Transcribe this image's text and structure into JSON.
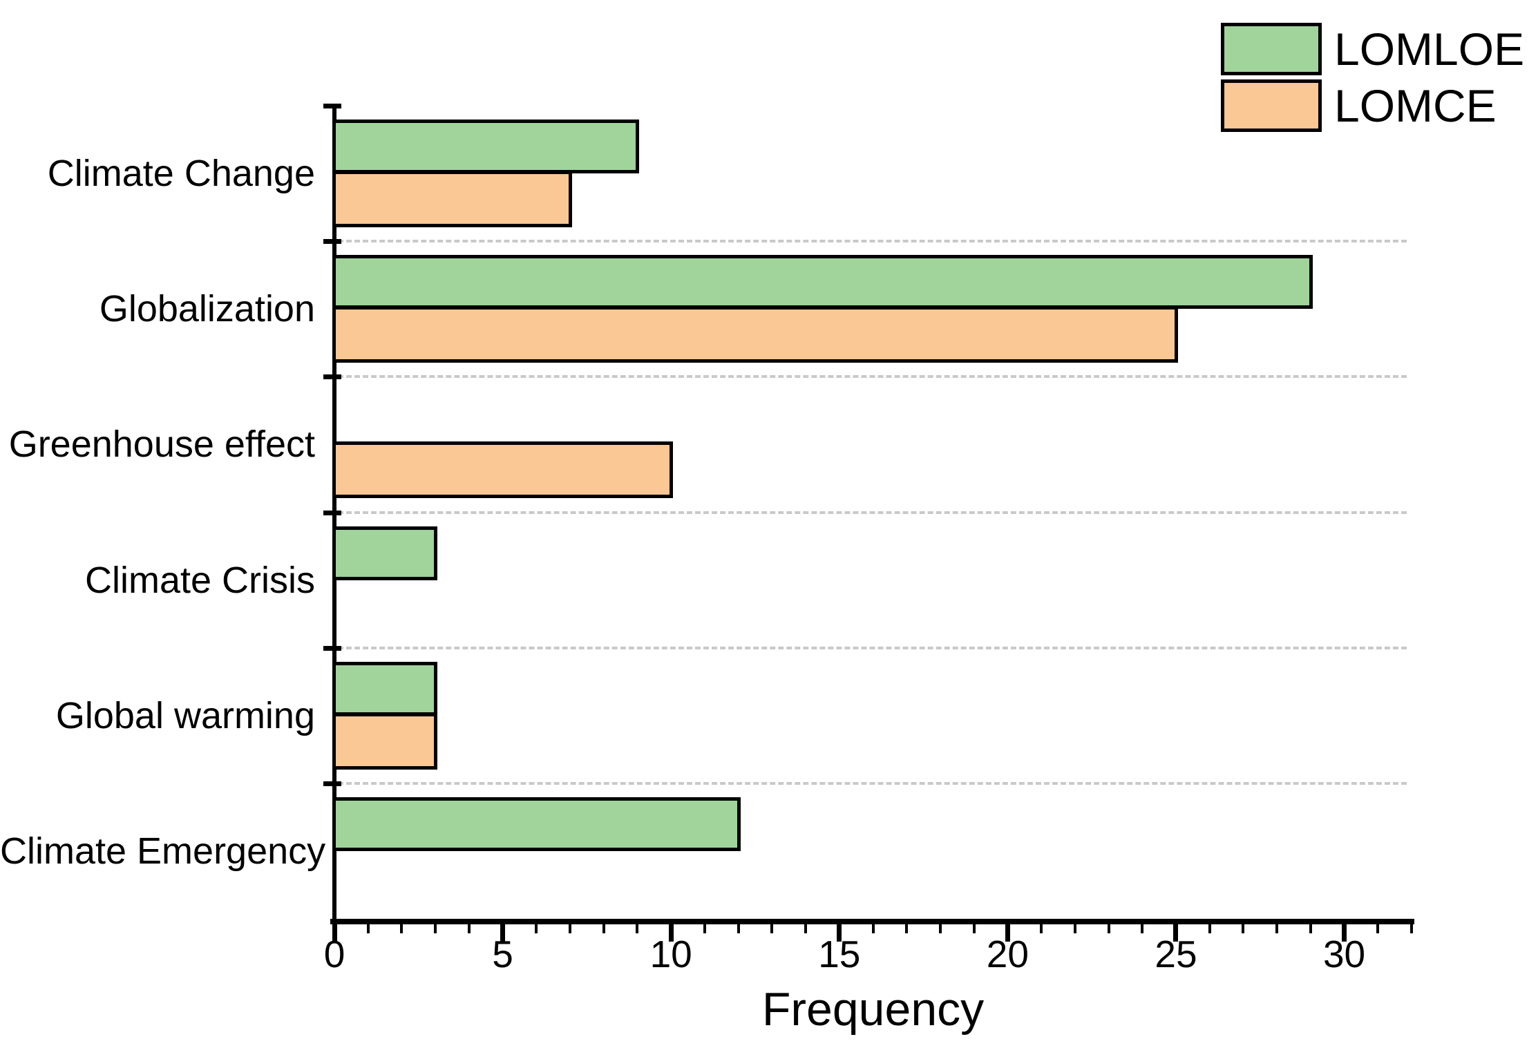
{
  "chart_data": {
    "type": "bar",
    "orientation": "horizontal",
    "title": "",
    "xlabel": "Frequency",
    "categories": [
      "Climate Change",
      "Globalization",
      "Greenhouse effect",
      "Climate Crisis",
      "Global warming",
      "Climate Emergency"
    ],
    "series": [
      {
        "name": "LOMLOE",
        "color": "#a0d49b",
        "values": [
          9,
          29,
          0,
          3,
          3,
          12
        ]
      },
      {
        "name": "LOMCE",
        "color": "#fac894",
        "values": [
          7,
          25,
          10,
          0,
          3,
          0
        ]
      }
    ],
    "xlim": [
      0,
      32
    ],
    "x_major_ticks": [
      0,
      5,
      10,
      15,
      20,
      25,
      30
    ],
    "x_minor_tick_step": 1,
    "bar_edge_color": "#000000",
    "gridline_color": "#c9c9c9",
    "gridline_style": "dashed",
    "grid": "horizontal dashed separators between category rows",
    "legend_position": "top-right",
    "legend_items": [
      {
        "label": "LOMLOE",
        "color": "#a0d49b"
      },
      {
        "label": "LOMCE",
        "color": "#fac894"
      }
    ]
  }
}
